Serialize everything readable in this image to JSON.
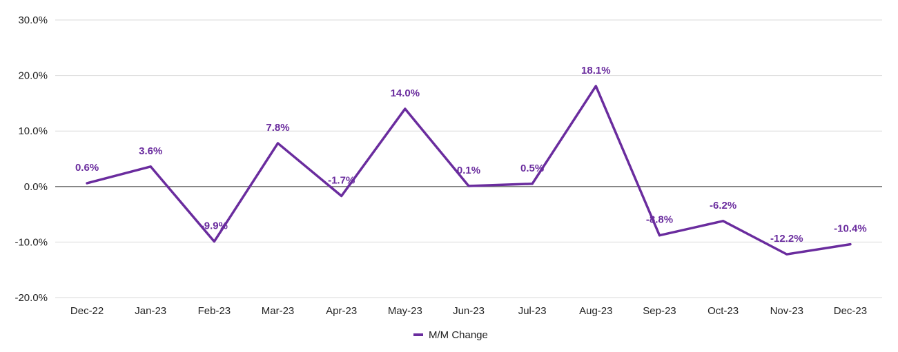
{
  "chart_data": {
    "type": "line",
    "categories": [
      "Dec-22",
      "Jan-23",
      "Feb-23",
      "Mar-23",
      "Apr-23",
      "May-23",
      "Jun-23",
      "Jul-23",
      "Aug-23",
      "Sep-23",
      "Oct-23",
      "Nov-23",
      "Dec-23"
    ],
    "series": [
      {
        "name": "M/M Change",
        "values": [
          0.6,
          3.6,
          -9.9,
          7.8,
          -1.7,
          14.0,
          0.1,
          0.5,
          18.1,
          -8.8,
          -6.2,
          -12.2,
          -10.4
        ],
        "labels": [
          "0.6%",
          "3.6%",
          "-9.9%",
          "7.8%",
          "-1.7%",
          "14.0%",
          "0.1%",
          "0.5%",
          "18.1%",
          "-8.8%",
          "-6.2%",
          "-12.2%",
          "-10.4%"
        ],
        "color": "#6a2c9e"
      }
    ],
    "y_ticks": [
      30,
      20,
      10,
      0,
      -10,
      -20
    ],
    "y_tick_labels": [
      "30.0%",
      "20.0%",
      "10.0%",
      "0.0%",
      "-10.0%",
      "-20.0%"
    ],
    "ylim": [
      -20,
      30
    ],
    "grid": true,
    "legend_position": "bottom",
    "colors": {
      "line": "#6a2c9e",
      "label": "#6a2c9e",
      "grid": "#d9d9d9",
      "zero_line": "#666666"
    }
  }
}
